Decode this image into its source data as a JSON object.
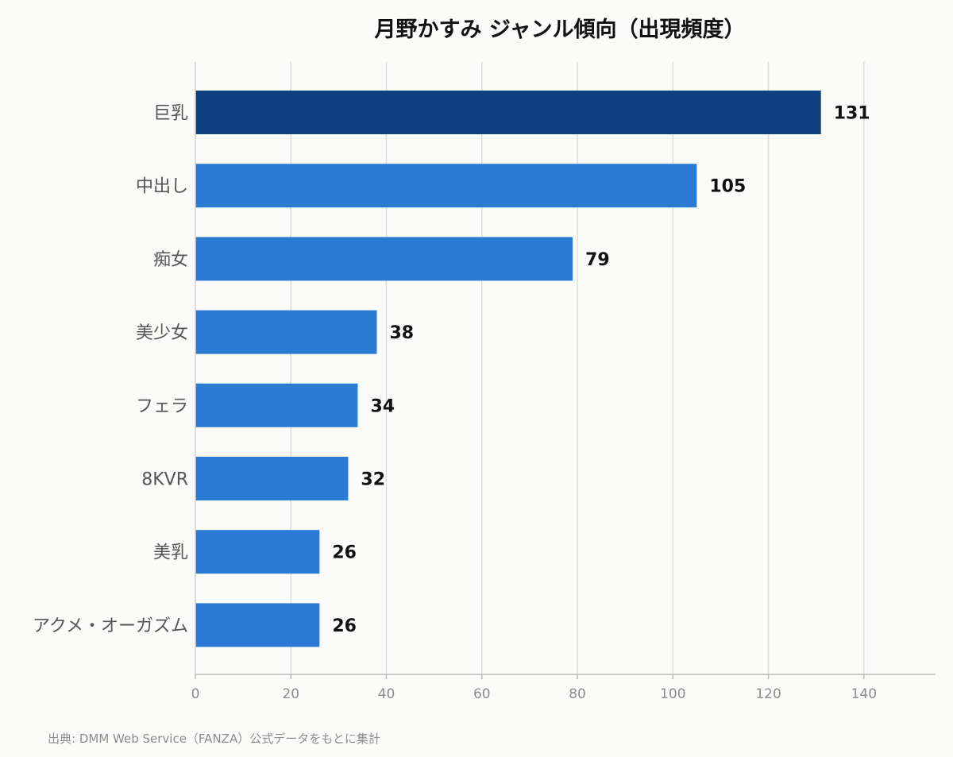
{
  "chart_data": {
    "type": "bar",
    "orientation": "horizontal",
    "title": "月野かすみ ジャンル傾向（出現頻度）",
    "categories": [
      "巨乳",
      "中出し",
      "痴女",
      "美少女",
      "フェラ",
      "8KVR",
      "美乳",
      "アクメ・オーガズム"
    ],
    "values": [
      131,
      105,
      79,
      38,
      34,
      32,
      26,
      26
    ],
    "xlim": [
      0,
      155
    ],
    "xticks": [
      0,
      20,
      40,
      60,
      80,
      100,
      120,
      140
    ],
    "grid": true,
    "highlight_color": "#0f4082",
    "bar_color": "#2a7ad6",
    "source": "出典: DMM Web Service（FANZA）公式データをもとに集計"
  }
}
